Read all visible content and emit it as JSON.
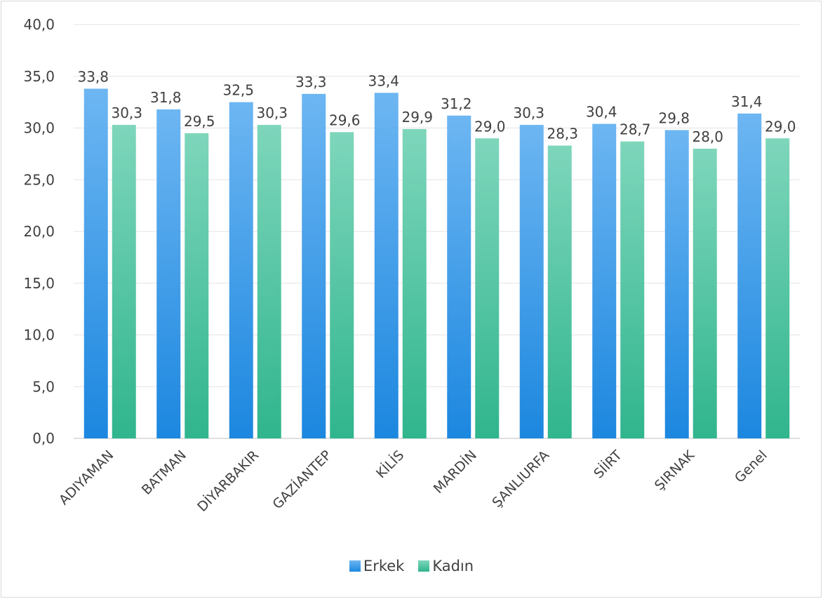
{
  "chart_data": {
    "type": "bar",
    "categories": [
      "ADIYAMAN",
      "BATMAN",
      "DİYARBAKIR",
      "GAZİANTEP",
      "KİLİS",
      "MARDİN",
      "ŞANLIURFA",
      "SİİRT",
      "ŞIRNAK",
      "Genel"
    ],
    "series": [
      {
        "name": "Erkek",
        "values": [
          33.8,
          31.8,
          32.5,
          33.3,
          33.4,
          31.2,
          30.3,
          30.4,
          29.8,
          31.4
        ],
        "color_top": "#6db6f2",
        "color_bottom": "#1c87df"
      },
      {
        "name": "Kadın",
        "values": [
          30.3,
          29.5,
          30.3,
          29.6,
          29.9,
          29.0,
          28.3,
          28.7,
          28.0,
          29.0
        ],
        "color_top": "#7ed6bb",
        "color_bottom": "#30b58d"
      }
    ],
    "yticks": [
      "0,0",
      "5,0",
      "10,0",
      "15,0",
      "20,0",
      "25,0",
      "30,0",
      "35,0",
      "40,0"
    ],
    "ylim": [
      0,
      40
    ],
    "data_labels": {
      "Erkek": [
        "33,8",
        "31,8",
        "32,5",
        "33,3",
        "33,4",
        "31,2",
        "30,3",
        "30,4",
        "29,8",
        "31,4"
      ],
      "Kadın": [
        "30,3",
        "29,5",
        "30,3",
        "29,6",
        "29,9",
        "29,0",
        "28,3",
        "28,7",
        "28,0",
        "29,0"
      ]
    },
    "grid": true,
    "legend_position": "bottom",
    "title": "",
    "xlabel": "",
    "ylabel": ""
  },
  "legend": {
    "erkek_label": "Erkek",
    "kadin_label": "Kadın"
  }
}
